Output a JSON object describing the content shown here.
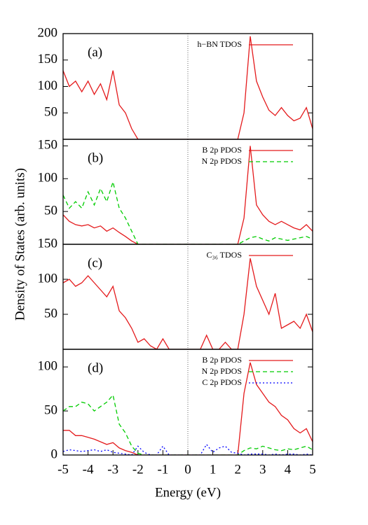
{
  "ylabel": "Density of States (arb. units)",
  "chart_data": [
    {
      "type": "line",
      "label": "(a)",
      "xlim": [
        -5,
        5
      ],
      "ylim": [
        0,
        200
      ],
      "yticks": [
        50,
        100,
        150,
        200
      ],
      "x": [
        -5,
        -4.75,
        -4.5,
        -4.25,
        -4,
        -3.75,
        -3.5,
        -3.25,
        -3,
        -2.75,
        -2.5,
        -2.25,
        -2,
        -1.75,
        -1.5,
        -1.25,
        -1,
        -0.75,
        -0.5,
        -0.25,
        0,
        0.25,
        0.5,
        0.75,
        1,
        1.25,
        1.5,
        1.75,
        2,
        2.25,
        2.5,
        2.75,
        3,
        3.25,
        3.5,
        3.75,
        4,
        4.25,
        4.5,
        4.75,
        5
      ],
      "series": [
        {
          "name": "h−BN TDOS",
          "color": "#e41a1c",
          "dash": "solid",
          "values": [
            130,
            100,
            110,
            90,
            110,
            85,
            105,
            75,
            130,
            65,
            50,
            20,
            0,
            0,
            0,
            0,
            0,
            0,
            0,
            0,
            0,
            0,
            0,
            0,
            0,
            0,
            0,
            0,
            0,
            50,
            195,
            110,
            80,
            55,
            45,
            60,
            45,
            35,
            40,
            60,
            20
          ]
        }
      ]
    },
    {
      "type": "line",
      "label": "(b)",
      "xlim": [
        -5,
        5
      ],
      "ylim": [
        0,
        160
      ],
      "yticks": [
        50,
        100,
        150
      ],
      "x": [
        -5,
        -4.75,
        -4.5,
        -4.25,
        -4,
        -3.75,
        -3.5,
        -3.25,
        -3,
        -2.75,
        -2.5,
        -2.25,
        -2,
        -1.75,
        -1.5,
        -1.25,
        -1,
        -0.75,
        -0.5,
        -0.25,
        0,
        0.25,
        0.5,
        0.75,
        1,
        1.25,
        1.5,
        1.75,
        2,
        2.25,
        2.5,
        2.75,
        3,
        3.25,
        3.5,
        3.75,
        4,
        4.25,
        4.5,
        4.75,
        5
      ],
      "series": [
        {
          "name": "B 2p PDOS",
          "color": "#e41a1c",
          "dash": "solid",
          "values": [
            45,
            35,
            30,
            28,
            30,
            25,
            28,
            20,
            25,
            18,
            12,
            5,
            0,
            0,
            0,
            0,
            0,
            0,
            0,
            0,
            0,
            0,
            0,
            0,
            0,
            0,
            0,
            0,
            0,
            40,
            150,
            60,
            45,
            35,
            30,
            35,
            30,
            25,
            22,
            30,
            20
          ]
        },
        {
          "name": "N 2p PDOS",
          "color": "#00cc00",
          "dash": "dashed",
          "values": [
            75,
            55,
            65,
            55,
            80,
            60,
            85,
            65,
            95,
            55,
            40,
            20,
            0,
            0,
            0,
            0,
            0,
            0,
            0,
            0,
            0,
            0,
            0,
            0,
            0,
            0,
            0,
            0,
            0,
            5,
            10,
            12,
            8,
            5,
            10,
            8,
            6,
            8,
            10,
            12,
            8
          ]
        }
      ]
    },
    {
      "type": "line",
      "label": "(c)",
      "xlim": [
        -5,
        5
      ],
      "ylim": [
        0,
        150
      ],
      "yticks": [
        50,
        100,
        150
      ],
      "x": [
        -5,
        -4.75,
        -4.5,
        -4.25,
        -4,
        -3.75,
        -3.5,
        -3.25,
        -3,
        -2.75,
        -2.5,
        -2.25,
        -2,
        -1.75,
        -1.5,
        -1.25,
        -1,
        -0.75,
        -0.5,
        -0.25,
        0,
        0.25,
        0.5,
        0.75,
        1,
        1.25,
        1.5,
        1.75,
        2,
        2.25,
        2.5,
        2.75,
        3,
        3.25,
        3.5,
        3.75,
        4,
        4.25,
        4.5,
        4.75,
        5
      ],
      "series": [
        {
          "name": "C₃₆ TDOS",
          "color": "#e41a1c",
          "dash": "solid",
          "values": [
            95,
            100,
            90,
            95,
            105,
            95,
            85,
            75,
            90,
            55,
            45,
            30,
            10,
            15,
            5,
            0,
            15,
            0,
            0,
            0,
            0,
            0,
            0,
            20,
            0,
            0,
            10,
            0,
            0,
            50,
            130,
            90,
            70,
            50,
            80,
            30,
            35,
            40,
            30,
            50,
            25
          ]
        }
      ]
    },
    {
      "type": "line",
      "label": "(d)",
      "xlim": [
        -5,
        5
      ],
      "ylim": [
        0,
        120
      ],
      "yticks": [
        0,
        50,
        100
      ],
      "xticks": [
        -5,
        -4,
        -3,
        -2,
        -1,
        0,
        1,
        2,
        3,
        4,
        5
      ],
      "xlabel": "Energy (eV)",
      "x": [
        -5,
        -4.75,
        -4.5,
        -4.25,
        -4,
        -3.75,
        -3.5,
        -3.25,
        -3,
        -2.75,
        -2.5,
        -2.25,
        -2,
        -1.75,
        -1.5,
        -1.25,
        -1,
        -0.75,
        -0.5,
        -0.25,
        0,
        0.25,
        0.5,
        0.75,
        1,
        1.25,
        1.5,
        1.75,
        2,
        2.25,
        2.5,
        2.75,
        3,
        3.25,
        3.5,
        3.75,
        4,
        4.25,
        4.5,
        4.75,
        5
      ],
      "series": [
        {
          "name": "B 2p PDOS",
          "color": "#e41a1c",
          "dash": "solid",
          "values": [
            28,
            28,
            22,
            22,
            20,
            18,
            15,
            12,
            14,
            8,
            5,
            3,
            0,
            0,
            0,
            0,
            0,
            0,
            0,
            0,
            0,
            0,
            0,
            0,
            0,
            0,
            0,
            0,
            0,
            70,
            105,
            80,
            70,
            60,
            55,
            45,
            40,
            30,
            25,
            30,
            15
          ]
        },
        {
          "name": "N 2p PDOS",
          "color": "#00cc00",
          "dash": "dashed",
          "values": [
            50,
            55,
            55,
            60,
            58,
            50,
            55,
            60,
            68,
            35,
            25,
            10,
            2,
            0,
            0,
            0,
            0,
            0,
            0,
            0,
            0,
            0,
            0,
            0,
            0,
            0,
            0,
            0,
            0,
            5,
            8,
            7,
            10,
            8,
            6,
            5,
            7,
            6,
            8,
            10,
            6
          ]
        },
        {
          "name": "C 2p PDOS",
          "color": "#0000ff",
          "dash": "dotted",
          "values": [
            4,
            6,
            5,
            4,
            5,
            6,
            4,
            6,
            3,
            2,
            1,
            0,
            10,
            3,
            0,
            0,
            10,
            0,
            0,
            0,
            0,
            0,
            0,
            12,
            3,
            8,
            10,
            3,
            2,
            0,
            1,
            1,
            1,
            0,
            1,
            0,
            1,
            1,
            0,
            1,
            0
          ]
        }
      ]
    }
  ]
}
